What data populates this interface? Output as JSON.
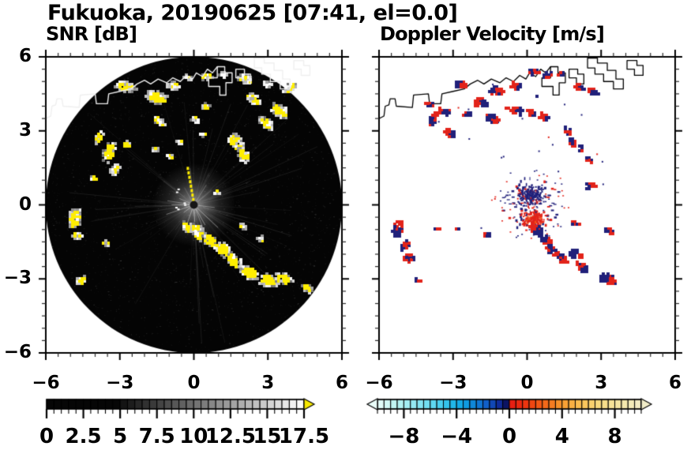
{
  "figure": {
    "title": "Fukuoka, 20190625 [07:41, el=0.0]",
    "background": "#ffffff",
    "frame_color": "#000000"
  },
  "chart_data": [
    {
      "type": "heatmap",
      "panel": "left",
      "title": "SNR [dB]",
      "x_range": [
        -6,
        6
      ],
      "y_range": [
        -6,
        6
      ],
      "x_tick_values": [
        -6,
        -3,
        0,
        3,
        6
      ],
      "x_tick_labels": [
        "−6",
        "−3",
        "0",
        "3",
        "6"
      ],
      "y_tick_values": [
        6,
        3,
        0,
        -3,
        -6
      ],
      "y_tick_labels": [
        "6",
        "3",
        "0",
        "−3",
        "−6"
      ],
      "minor_tick_step": 0.5,
      "disk_color": "#040404",
      "echo_color": "#ffee00",
      "coast_color": "#efefef",
      "colorbar": {
        "min": 0,
        "max": 17.5,
        "segment_step": 0.5,
        "solid_black_below": 5,
        "tick_step": 0.5,
        "label_step": 2.5,
        "label_values": [
          0,
          2.5,
          5,
          7.5,
          10,
          12.5,
          15,
          17.5
        ],
        "labels": [
          "0",
          "2.5",
          "5",
          "7.5",
          "10",
          "12.5",
          "15",
          "17.5"
        ],
        "gray_low": "#060606",
        "gray_high": "#ffffff",
        "over_arrow_color": "#f6e800"
      },
      "texture": {
        "noise_count": 2800,
        "streak_count": 70,
        "bright_spoke_count": 16,
        "haze_radius": 1.7
      },
      "center_dash_line": {
        "angle_deg": 100,
        "r_start": 0.22,
        "r_end": 1.5,
        "count": 8
      },
      "clusters": [
        [
          -2.8,
          4.85,
          0.3,
          -10,
          0.75
        ],
        [
          -1.55,
          4.42,
          0.32,
          -20,
          0.8
        ],
        [
          -0.85,
          4.9,
          0.18,
          0,
          0.55
        ],
        [
          -0.3,
          5.2,
          0.14,
          0,
          0.3
        ],
        [
          0.48,
          5.27,
          0.16,
          0,
          0.5
        ],
        [
          1.1,
          5.35,
          0.12,
          0,
          0.25
        ],
        [
          2.04,
          5.18,
          0.22,
          -15,
          0.2
        ],
        [
          2.9,
          4.95,
          0.14,
          0,
          0.15
        ],
        [
          3.83,
          4.79,
          0.2,
          25,
          0.15
        ],
        [
          2.36,
          4.35,
          0.24,
          -30,
          0.6
        ],
        [
          3.42,
          3.87,
          0.28,
          -40,
          0.85
        ],
        [
          2.88,
          3.39,
          0.24,
          -42,
          0.8
        ],
        [
          1.66,
          2.56,
          0.3,
          -60,
          0.9
        ],
        [
          1.95,
          2.08,
          0.24,
          -60,
          0.85
        ],
        [
          0,
          3.51,
          0.13,
          0,
          0.55
        ],
        [
          0.45,
          4.06,
          0.13,
          0,
          0.5
        ],
        [
          -1.45,
          3.45,
          0.18,
          -30,
          0.6
        ],
        [
          -3.9,
          2.8,
          0.17,
          60,
          0.7
        ],
        [
          -3.5,
          2.2,
          0.3,
          70,
          0.85
        ],
        [
          -3.25,
          1.5,
          0.19,
          60,
          0.7
        ],
        [
          -2.8,
          2.5,
          0.14,
          0,
          0.65
        ],
        [
          -1.65,
          2.3,
          0.12,
          0,
          0.45
        ],
        [
          -1,
          2.05,
          0.12,
          -40,
          0.35
        ],
        [
          -4.1,
          1.15,
          0.1,
          0,
          0.5
        ],
        [
          -4.89,
          -0.5,
          0.3,
          80,
          0.85
        ],
        [
          -4.79,
          -1.21,
          0.17,
          0,
          0.7
        ],
        [
          -4.6,
          -3,
          0.17,
          30,
          0.8
        ],
        [
          -3.6,
          -1.5,
          0.1,
          0,
          0.4
        ],
        [
          -0.35,
          -0.85,
          0.2,
          -50,
          0.85
        ],
        [
          0.1,
          -1.05,
          0.27,
          -50,
          0.9
        ],
        [
          0.58,
          -1.37,
          0.25,
          -50,
          0.9
        ],
        [
          1.12,
          -1.76,
          0.27,
          -45,
          0.9
        ],
        [
          1.57,
          -2.2,
          0.27,
          -45,
          0.9
        ],
        [
          2.2,
          -2.68,
          0.29,
          -30,
          0.9
        ],
        [
          2.94,
          -3,
          0.29,
          -18,
          0.9
        ],
        [
          3.58,
          -2.95,
          0.25,
          -20,
          0.85
        ],
        [
          4.54,
          -3.32,
          0.17,
          -20,
          0.7
        ],
        [
          2.65,
          -1.34,
          0.14,
          -40,
          0.55
        ],
        [
          1.9,
          -0.8,
          0.1,
          -30,
          0.5
        ],
        [
          0.85,
          0.55,
          0.1,
          0,
          0.35
        ],
        [
          -0.6,
          2.6,
          0.09,
          0,
          0.25
        ],
        [
          0.3,
          2.9,
          0.09,
          0,
          0.25
        ]
      ]
    },
    {
      "type": "heatmap",
      "panel": "right",
      "title": "Doppler Velocity [m/s]",
      "x_range": [
        -6,
        6
      ],
      "y_range": [
        -6,
        6
      ],
      "x_tick_values": [
        -6,
        -3,
        0,
        3,
        6
      ],
      "x_tick_labels": [
        "−6",
        "−3",
        "0",
        "3",
        "6"
      ],
      "minor_tick_step": 0.5,
      "neg_color": "#20207a",
      "pos_color": "#e2231a",
      "pos_color_hot": "#f0551f",
      "coast_color": "#000000",
      "colorbar": {
        "min": -10,
        "max": 10,
        "segment_step": 0.5,
        "tick_step": 0.5,
        "label_values": [
          -8,
          -4,
          0,
          4,
          8
        ],
        "labels": [
          "−8",
          "−4",
          "0",
          "4",
          "8"
        ],
        "stops": [
          [
            -10,
            "#e9fdf9"
          ],
          [
            -8.5,
            "#baf3f1"
          ],
          [
            -7,
            "#8ce7f3"
          ],
          [
            -5.5,
            "#55d5f1"
          ],
          [
            -4.5,
            "#27bdea"
          ],
          [
            -3.5,
            "#0fa3e3"
          ],
          [
            -2.5,
            "#0f7fd6"
          ],
          [
            -1.5,
            "#1256c4"
          ],
          [
            -0.75,
            "#102c9a"
          ],
          [
            -0.25,
            "#0c1464"
          ],
          [
            0,
            "#0c1464"
          ],
          [
            0.05,
            "#e81c13"
          ],
          [
            1,
            "#ea2c0f"
          ],
          [
            2,
            "#f04e12"
          ],
          [
            3,
            "#f4721c"
          ],
          [
            4,
            "#f79a2e"
          ],
          [
            5.5,
            "#fac355"
          ],
          [
            7,
            "#f8dd85"
          ],
          [
            8.5,
            "#f4e7a8"
          ],
          [
            10,
            "#f1ecc8"
          ]
        ]
      },
      "starburst": {
        "x": 0.1,
        "y": 0.15,
        "spread": 0.6,
        "navy_count": 240,
        "spike_count": 70,
        "sparse_count": 90,
        "sparse_r": 1.6,
        "red_mass": {
          "x": 0.22,
          "y": -0.52,
          "r": 0.42,
          "count": 150
        },
        "stray_speck_count": 22
      },
      "clusters": [
        [
          -4.03,
          4.15,
          0.15,
          -20
        ],
        [
          -3.87,
          3.55,
          0.27,
          60
        ],
        [
          -3.45,
          3.87,
          0.21,
          -20
        ],
        [
          -3.2,
          2.97,
          0.23,
          -30
        ],
        [
          -2.75,
          4.95,
          0.25,
          -20
        ],
        [
          -2.5,
          3.71,
          0.14,
          0
        ],
        [
          -1.92,
          4.19,
          0.27,
          -10
        ],
        [
          -1.44,
          3.55,
          0.25,
          -20
        ],
        [
          -1.28,
          4.66,
          0.27,
          -15
        ],
        [
          -0.48,
          4.89,
          0.21,
          -10
        ],
        [
          -0.48,
          3.87,
          0.23,
          -20
        ],
        [
          0.13,
          3.77,
          0.19,
          -40
        ],
        [
          0.22,
          5.43,
          0.19,
          0
        ],
        [
          0.64,
          3.61,
          0.21,
          -30
        ],
        [
          0.77,
          5.3,
          0.17,
          0
        ],
        [
          1.34,
          5.37,
          0.15,
          0
        ],
        [
          1.57,
          3.07,
          0.19,
          -70
        ],
        [
          1.76,
          2.65,
          0.21,
          -70
        ],
        [
          2.08,
          4.82,
          0.19,
          -20
        ],
        [
          2.62,
          4.66,
          0.21,
          -15
        ],
        [
          2.14,
          2.33,
          0.15,
          -60
        ],
        [
          2.46,
          1.85,
          0.13,
          -60
        ],
        [
          2.5,
          0.82,
          0.2,
          0
        ],
        [
          1.9,
          -0.7,
          0.13,
          -30
        ],
        [
          -5.3,
          -0.9,
          0.33,
          75
        ],
        [
          -5,
          -1.6,
          0.23,
          40
        ],
        [
          -4.85,
          -2.1,
          0.23,
          -20
        ],
        [
          -4.5,
          -3,
          0.1,
          0
        ],
        [
          -3.7,
          -0.93,
          0.11,
          0
        ],
        [
          -2.9,
          -0.93,
          0.06,
          0
        ],
        [
          -1.65,
          -1.15,
          0.13,
          -30
        ],
        [
          0.3,
          -0.95,
          0.28,
          -45
        ],
        [
          0.68,
          -1.35,
          0.25,
          -45
        ],
        [
          0.95,
          -1.8,
          0.25,
          -45
        ],
        [
          1.35,
          -2.1,
          0.25,
          -40
        ],
        [
          1.9,
          -1.95,
          0.26,
          -20
        ],
        [
          2.15,
          -2.45,
          0.25,
          -30
        ],
        [
          3.2,
          -2.95,
          0.34,
          -18
        ],
        [
          3.26,
          -1,
          0.18,
          -20
        ],
        [
          -0.9,
          4,
          0.07,
          0
        ],
        [
          0.35,
          4.45,
          0.06,
          0
        ]
      ]
    }
  ],
  "coastline": {
    "main": [
      [
        -6,
        3.5
      ],
      [
        -5.8,
        3.6
      ],
      [
        -5.75,
        4
      ],
      [
        -5.6,
        4.05
      ],
      [
        -5.55,
        4.3
      ],
      [
        -5.35,
        4.3
      ],
      [
        -5.3,
        4
      ],
      [
        -4.65,
        3.95
      ],
      [
        -4.6,
        4.45
      ],
      [
        -4,
        4.5
      ],
      [
        -3.95,
        4.1
      ],
      [
        -3.5,
        4.1
      ],
      [
        -3.45,
        4.5
      ],
      [
        -3,
        4.6
      ],
      [
        -2.55,
        4.7
      ],
      [
        -2.3,
        4.9
      ],
      [
        -2,
        5.05
      ],
      [
        -1.75,
        4.9
      ],
      [
        -1.45,
        5.1
      ],
      [
        -1.1,
        4.95
      ],
      [
        -0.85,
        5.15
      ],
      [
        -0.55,
        5
      ],
      [
        -0.3,
        5.25
      ],
      [
        -0.05,
        5.1
      ],
      [
        0.1,
        5.35
      ],
      [
        0.35,
        5.2
      ],
      [
        0.55,
        5.5
      ],
      [
        0.75,
        5.35
      ],
      [
        0.95,
        5.6
      ]
    ],
    "harbor": [
      [
        [
          0.95,
          5.6
        ],
        [
          0.95,
          5.15
        ],
        [
          0.6,
          5.15
        ],
        [
          0.6,
          4.8
        ],
        [
          1.05,
          4.8
        ],
        [
          1.05,
          4.45
        ],
        [
          1.3,
          4.45
        ],
        [
          1.3,
          4.95
        ],
        [
          1.55,
          4.95
        ],
        [
          1.55,
          5.35
        ],
        [
          1.25,
          5.35
        ],
        [
          1.25,
          5.6
        ]
      ],
      [
        [
          1.7,
          5.5
        ],
        [
          1.7,
          5.15
        ],
        [
          2,
          5.15
        ],
        [
          2,
          4.9
        ],
        [
          2.3,
          4.9
        ],
        [
          2.3,
          5.3
        ],
        [
          2.05,
          5.3
        ],
        [
          2.05,
          5.5
        ]
      ],
      [
        [
          2.45,
          5.95
        ],
        [
          2.45,
          5.55
        ],
        [
          2.75,
          5.55
        ],
        [
          2.75,
          5.3
        ],
        [
          3.1,
          5.3
        ],
        [
          3.1,
          5
        ],
        [
          3.5,
          5
        ],
        [
          3.5,
          4.7
        ],
        [
          3.9,
          4.7
        ],
        [
          3.9,
          5.1
        ],
        [
          3.6,
          5.1
        ],
        [
          3.6,
          5.45
        ],
        [
          3.25,
          5.45
        ],
        [
          3.25,
          5.75
        ],
        [
          2.85,
          5.75
        ],
        [
          2.85,
          5.95
        ]
      ],
      [
        [
          4.05,
          5.85
        ],
        [
          4.05,
          5.5
        ],
        [
          4.35,
          5.5
        ],
        [
          4.35,
          5.25
        ],
        [
          4.7,
          5.25
        ],
        [
          4.7,
          5.65
        ],
        [
          4.45,
          5.65
        ],
        [
          4.45,
          5.85
        ]
      ]
    ]
  }
}
